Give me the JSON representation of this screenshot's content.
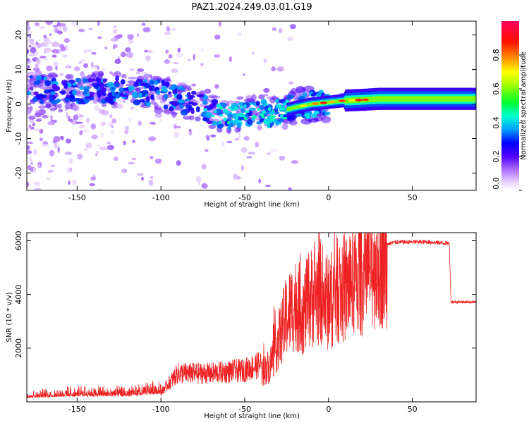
{
  "title": "PAZ1.2024.249.03.01.G19",
  "chart_data": [
    {
      "type": "heatmap",
      "title": "PAZ1.2024.249.03.01.G19",
      "xlabel": "Height of straight line (km)",
      "ylabel": "Frequency (Hz)",
      "xlim": [
        -180,
        88
      ],
      "ylim": [
        -25,
        24
      ],
      "xticks": [
        -150,
        -100,
        -50,
        0,
        50
      ],
      "yticks": [
        -20,
        -10,
        0,
        10,
        20
      ],
      "colorbar": {
        "label": "Normalized spectral amplitude",
        "range": [
          0,
          1
        ],
        "ticks": [
          "0.0",
          "0.2",
          "0.4",
          "0.6",
          "0.8"
        ],
        "colors": [
          "#ffffff",
          "#b070ff",
          "#4000ff",
          "#0000ff",
          "#00d0ff",
          "#00ff40",
          "#ffff00",
          "#ff8000",
          "#ff0000",
          "#ff0060"
        ]
      },
      "ridge": {
        "x": [
          -180,
          -160,
          -140,
          -120,
          -100,
          -80,
          -60,
          -45,
          -35,
          -28,
          -20,
          -10,
          0,
          10,
          20,
          30,
          50,
          88
        ],
        "y": [
          5,
          3,
          4,
          4,
          3,
          0,
          -4,
          -2,
          -3,
          -2,
          -1,
          0,
          0.5,
          1,
          1.2,
          1.5,
          1.5,
          1.5
        ]
      }
    },
    {
      "type": "line",
      "xlabel": "Height of straight line (km)",
      "ylabel": "SNR (10 * v/v)",
      "xlim": [
        -180,
        88
      ],
      "ylim": [
        0,
        6300
      ],
      "xticks": [
        -150,
        -100,
        -50,
        0,
        50
      ],
      "yticks": [
        2000,
        4000,
        6000
      ],
      "color": "#ee2222",
      "envelope": {
        "x": [
          -180,
          -150,
          -120,
          -100,
          -90,
          -70,
          -50,
          -40,
          -35,
          -30,
          -25,
          -20,
          -15,
          -10,
          -5,
          0,
          5,
          10,
          15,
          20,
          25,
          30,
          40,
          50,
          60,
          72,
          73,
          88
        ],
        "y": [
          150,
          200,
          200,
          300,
          900,
          900,
          1000,
          1200,
          1500,
          2500,
          3500,
          4000,
          3700,
          4300,
          4500,
          4000,
          4600,
          4600,
          5000,
          5200,
          5600,
          5800,
          5950,
          5950,
          5950,
          5900,
          3720,
          3720
        ]
      }
    }
  ]
}
